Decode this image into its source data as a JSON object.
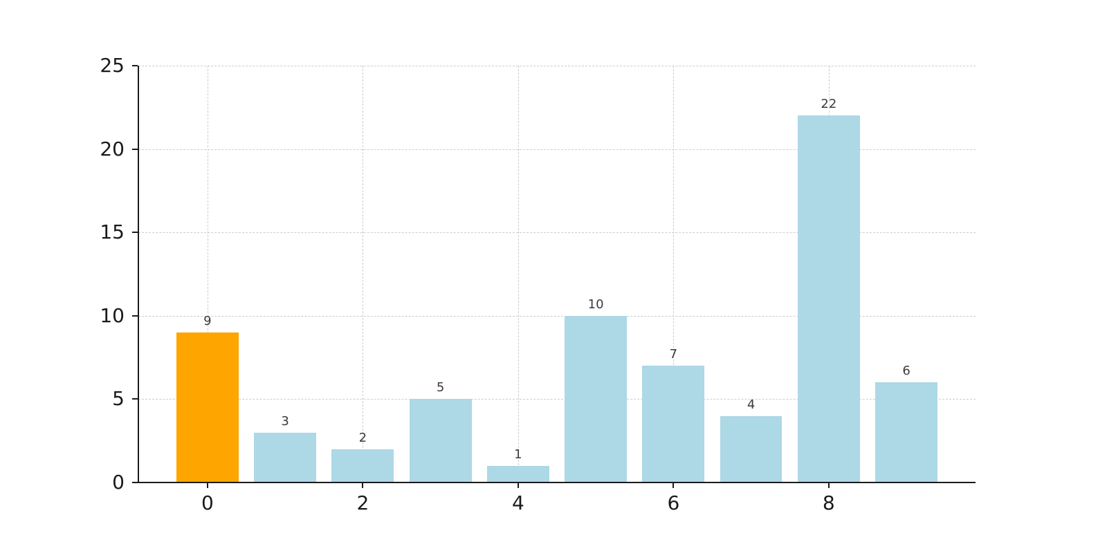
{
  "chart_data": {
    "type": "bar",
    "title": "",
    "xlabel": "",
    "ylabel": "",
    "x": [
      0,
      1,
      2,
      3,
      4,
      5,
      6,
      7,
      8,
      9
    ],
    "values": [
      9,
      3,
      2,
      5,
      1,
      10,
      7,
      4,
      22,
      6
    ],
    "value_labels": [
      "9",
      "3",
      "2",
      "5",
      "1",
      "10",
      "7",
      "4",
      "22",
      "6"
    ],
    "bar_width": 0.8,
    "highlight_index": 0,
    "colors": {
      "bar_default": "#ADD8E6",
      "bar_highlight": "#FFA500",
      "grid": "#cccccc",
      "axis": "#1a1a1a",
      "tick_label": "#1a1a1a",
      "value_label": "#3a3a3a"
    },
    "ylim": [
      0,
      25
    ],
    "yticks": [
      0,
      5,
      10,
      15,
      20,
      25
    ],
    "xticks": [
      0,
      2,
      4,
      6,
      8
    ],
    "grid": true,
    "legend": null
  }
}
